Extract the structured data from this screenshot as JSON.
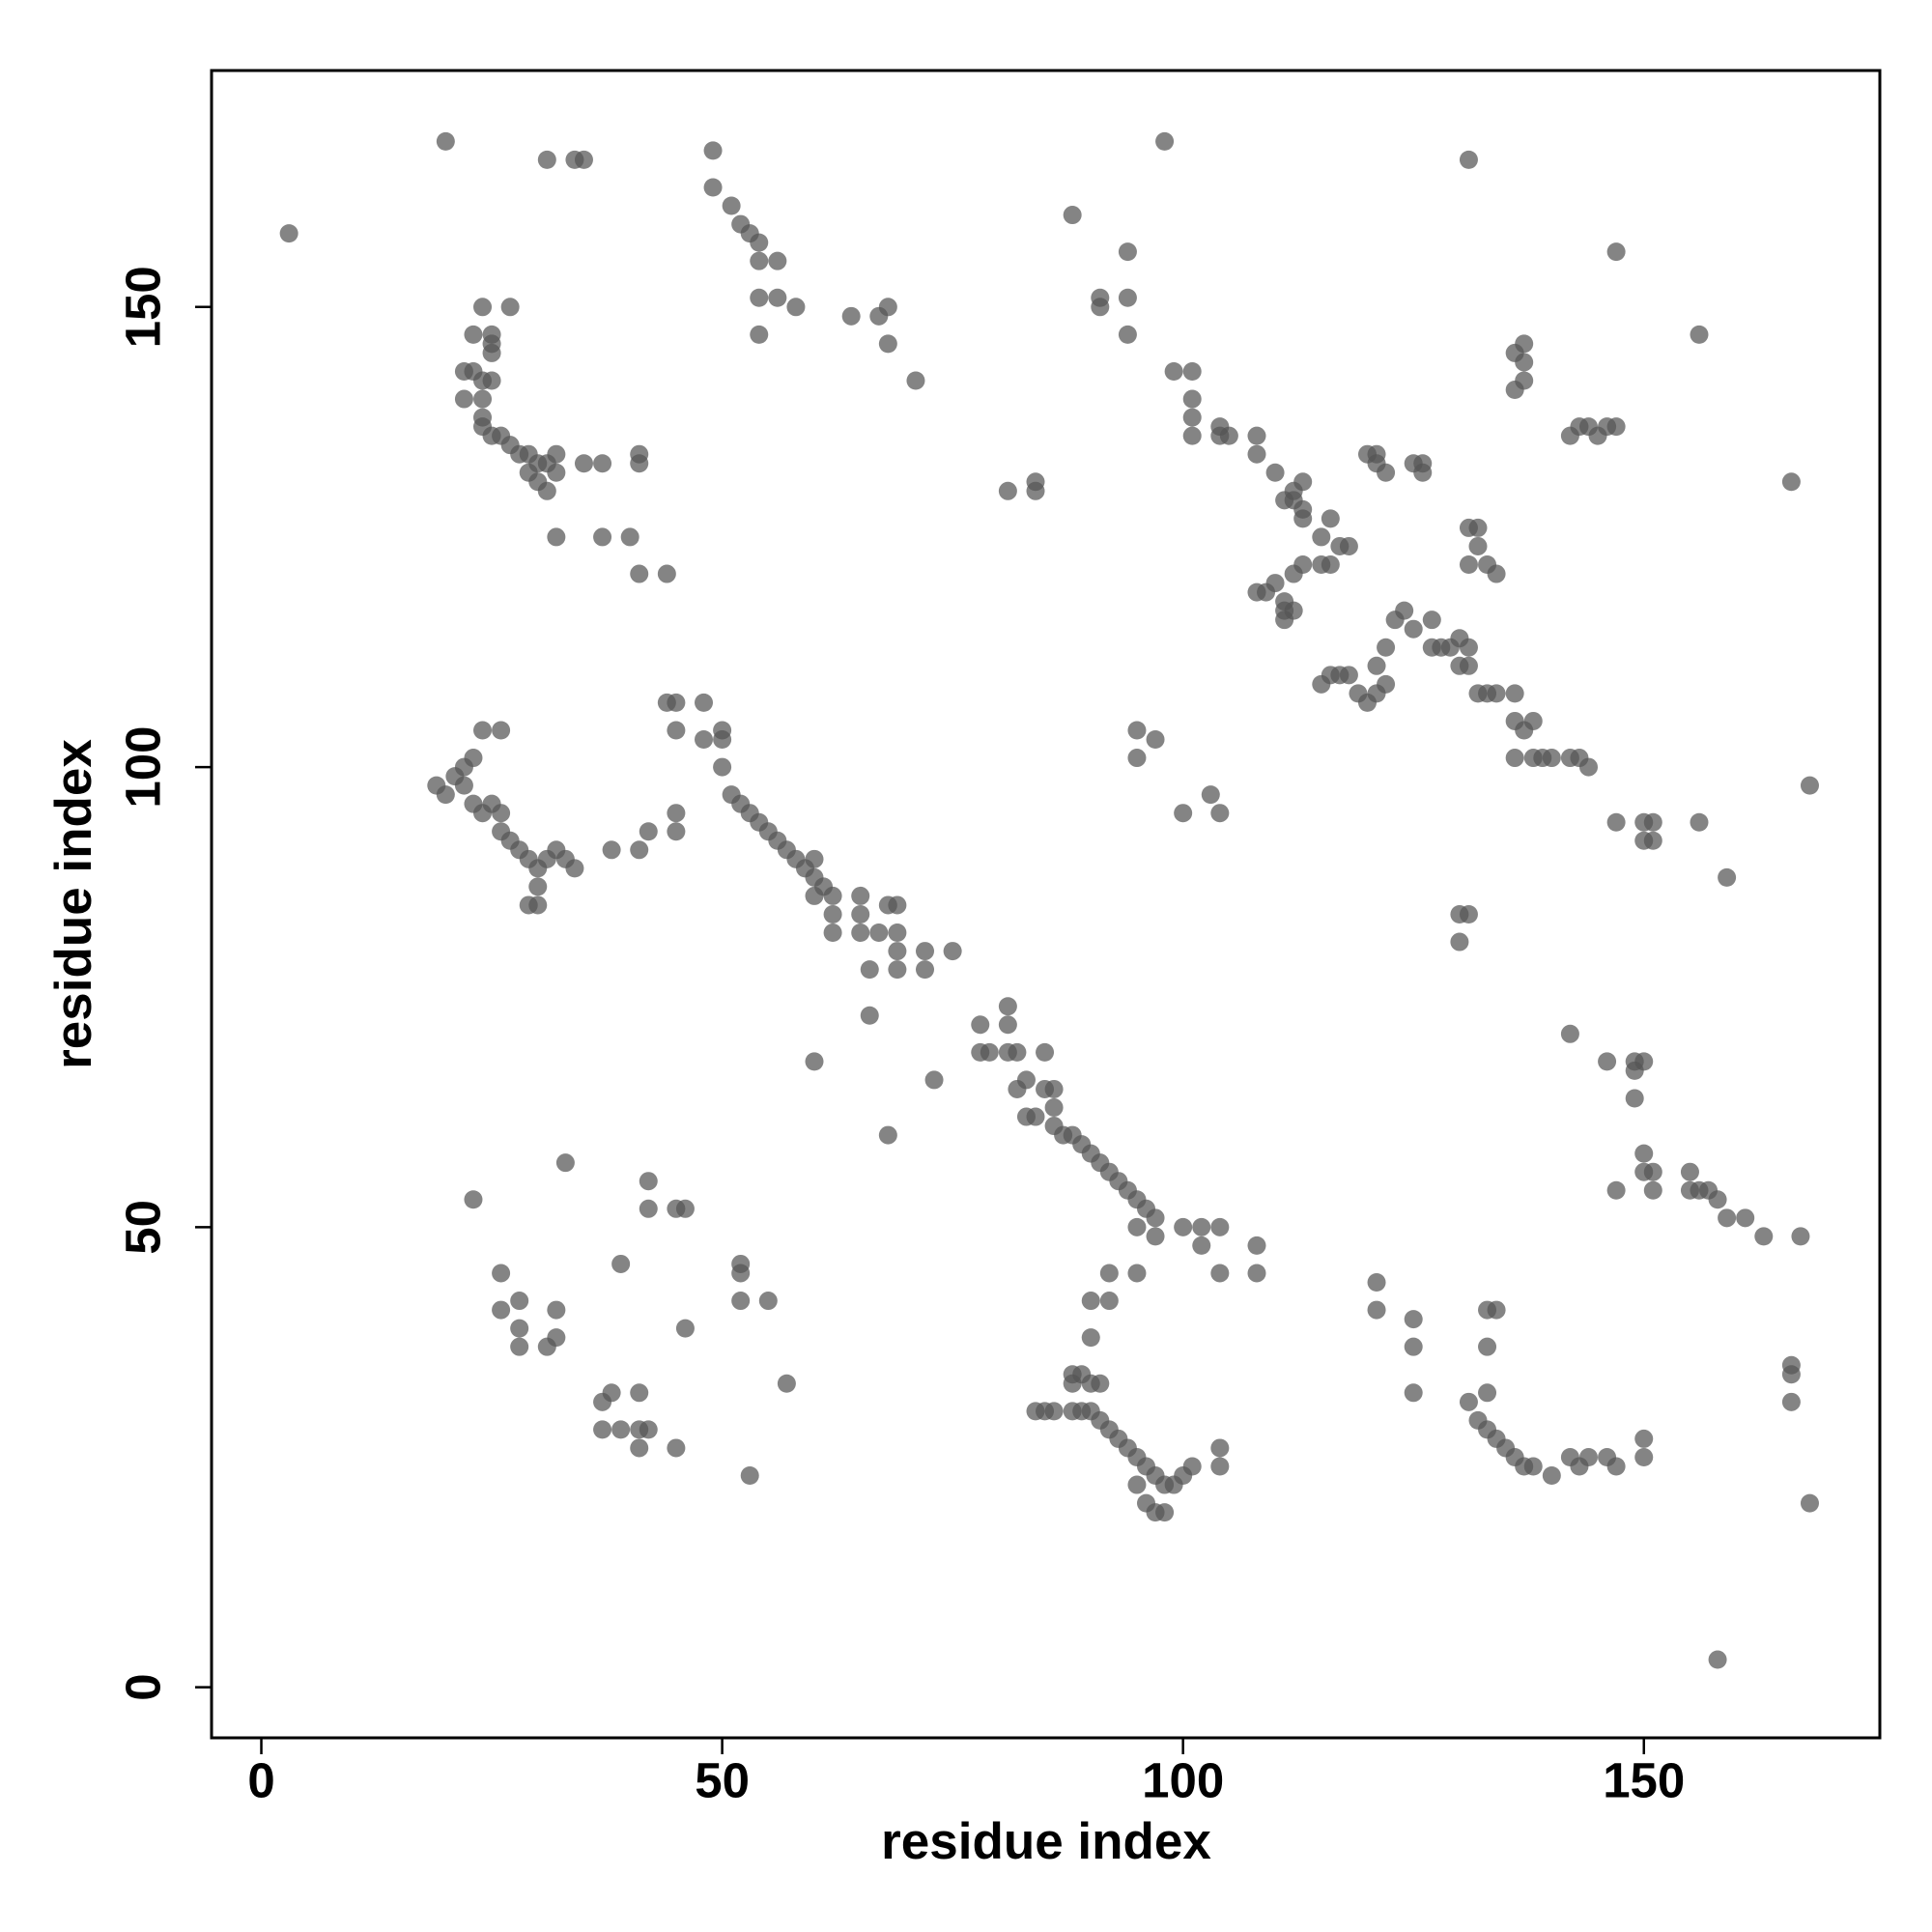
{
  "chart_data": {
    "type": "scatter",
    "x_label": "residue index",
    "y_label": "residue index",
    "color": "#555555",
    "opacity": 0.72,
    "xlim": [
      -5.4,
      175.6
    ],
    "ylim": [
      -5.5,
      175.7
    ],
    "xticks": [
      0,
      50,
      100,
      150
    ],
    "yticks": [
      0,
      50,
      100,
      150
    ],
    "x": [
      24,
      27,
      23,
      25,
      25,
      25,
      22,
      23,
      24,
      25,
      22,
      24,
      24,
      24,
      25,
      26,
      27,
      28,
      29,
      30,
      31,
      32,
      29,
      30,
      31,
      32,
      35,
      37,
      41,
      41,
      32,
      37,
      40,
      41,
      44,
      3,
      20,
      31,
      34,
      35,
      49,
      49,
      51,
      52,
      53,
      54,
      54,
      56,
      54,
      56,
      58,
      54,
      64,
      67,
      68,
      68,
      71,
      133,
      134,
      133,
      133,
      131,
      132,
      133,
      134,
      135,
      136,
      137,
      138,
      140,
      142,
      143,
      144,
      146,
      147,
      150,
      150,
      166,
      166,
      166,
      168,
      158,
      121,
      121,
      125,
      125,
      125,
      19,
      20,
      21,
      22,
      22,
      23,
      23,
      24,
      25,
      26,
      26,
      27,
      28,
      29,
      30,
      30,
      30,
      29,
      31,
      32,
      33,
      34,
      24,
      26,
      38,
      42,
      41,
      45,
      45,
      44,
      45,
      45,
      48,
      48,
      50,
      50,
      50,
      51,
      52,
      53,
      54,
      55,
      56,
      57,
      58,
      59,
      60,
      60,
      61,
      60,
      62,
      62,
      62,
      65,
      65,
      65,
      67,
      68,
      69,
      69,
      69,
      69,
      66,
      72,
      72,
      75,
      66,
      60,
      73,
      68,
      78,
      81,
      81,
      78,
      79,
      81,
      82,
      83,
      82,
      83,
      84,
      85,
      86,
      85,
      86,
      86,
      87,
      88,
      89,
      90,
      91,
      92,
      93,
      94,
      95,
      96,
      97,
      95,
      97,
      100,
      102,
      104,
      108,
      108,
      102,
      104,
      92,
      95,
      90,
      92,
      90,
      84,
      85,
      86,
      88,
      89,
      90,
      91,
      92,
      93,
      94,
      95,
      96,
      97,
      98,
      99,
      100,
      101,
      96,
      97,
      98,
      95,
      104,
      104,
      88,
      89,
      90,
      91,
      88,
      23,
      33,
      26,
      26,
      28,
      28,
      28,
      31,
      32,
      32,
      39,
      37,
      38,
      37,
      39,
      41,
      41,
      42,
      41,
      45,
      42,
      42,
      45,
      46,
      46,
      52,
      52,
      52,
      55,
      57,
      53,
      99,
      101,
      101,
      101,
      101,
      104,
      104,
      105,
      108,
      108,
      110,
      112,
      113,
      112,
      111,
      113,
      113,
      116,
      115,
      116,
      117,
      118,
      113,
      112,
      110,
      109,
      108,
      111,
      111,
      112,
      111,
      115,
      120,
      121,
      122,
      121,
      125,
      126,
      126,
      131,
      132,
      132,
      131,
      133,
      134,
      115,
      116,
      117,
      118,
      119,
      120,
      121,
      122,
      121,
      122,
      123,
      124,
      125,
      127,
      127,
      128,
      129,
      130,
      130,
      131,
      131,
      132,
      133,
      134,
      136,
      136,
      137,
      138,
      136,
      138,
      139,
      140,
      142,
      143,
      144,
      88,
      94,
      91,
      91,
      94,
      94,
      98,
      81,
      84,
      84,
      95,
      95,
      97,
      100,
      103,
      104,
      131,
      147,
      137,
      137,
      136,
      136,
      137,
      142,
      143,
      144,
      146,
      145,
      147,
      156,
      166,
      168,
      147,
      150,
      151,
      150,
      151,
      156,
      159,
      130,
      131,
      130,
      142,
      146,
      149,
      150,
      149,
      149,
      150,
      150,
      151,
      151,
      147,
      155,
      155,
      156,
      157,
      158,
      159,
      161,
      163,
      167
    ],
    "y": [
      150,
      150,
      147,
      147,
      146,
      145,
      143,
      143,
      142,
      142,
      140,
      140,
      138,
      137,
      136,
      136,
      135,
      134,
      134,
      133,
      133,
      134,
      132,
      131,
      130,
      132,
      133,
      133,
      134,
      133,
      125,
      125,
      125,
      121,
      121,
      158,
      168,
      166,
      166,
      166,
      167,
      163,
      161,
      159,
      158,
      157,
      155,
      155,
      151,
      151,
      150,
      147,
      149,
      149,
      150,
      146,
      142,
      41,
      41,
      37,
      32,
      31,
      29,
      28,
      27,
      26,
      25,
      24,
      24,
      23,
      25,
      24,
      25,
      25,
      24,
      25,
      27,
      35,
      34,
      31,
      20,
      3,
      44,
      41,
      40,
      37,
      32,
      98,
      97,
      99,
      100,
      98,
      101,
      96,
      95,
      96,
      95,
      93,
      92,
      91,
      90,
      89,
      87,
      85,
      85,
      90,
      91,
      90,
      89,
      104,
      104,
      91,
      93,
      91,
      95,
      93,
      107,
      107,
      104,
      107,
      103,
      104,
      103,
      100,
      97,
      96,
      95,
      94,
      93,
      92,
      91,
      90,
      89,
      90,
      88,
      87,
      86,
      86,
      84,
      82,
      86,
      84,
      82,
      82,
      85,
      85,
      82,
      80,
      78,
      78,
      80,
      78,
      80,
      73,
      68,
      66,
      60,
      72,
      74,
      72,
      69,
      69,
      69,
      69,
      66,
      65,
      62,
      62,
      65,
      65,
      69,
      63,
      61,
      60,
      60,
      59,
      58,
      57,
      56,
      55,
      54,
      53,
      52,
      51,
      50,
      49,
      50,
      50,
      50,
      48,
      45,
      48,
      45,
      45,
      45,
      42,
      42,
      38,
      30,
      30,
      30,
      30,
      30,
      30,
      29,
      28,
      27,
      26,
      25,
      24,
      23,
      22,
      22,
      23,
      24,
      20,
      19,
      19,
      22,
      24,
      26,
      34,
      34,
      33,
      33,
      33,
      53,
      57,
      45,
      41,
      42,
      39,
      37,
      37,
      38,
      41,
      46,
      31,
      32,
      28,
      28,
      28,
      32,
      28,
      26,
      26,
      55,
      52,
      52,
      52,
      39,
      46,
      45,
      42,
      42,
      33,
      23,
      143,
      143,
      140,
      138,
      136,
      136,
      137,
      136,
      136,
      134,
      132,
      130,
      131,
      129,
      129,
      128,
      127,
      127,
      125,
      122,
      124,
      124,
      122,
      121,
      120,
      119,
      119,
      116,
      117,
      117,
      118,
      122,
      134,
      133,
      132,
      134,
      133,
      133,
      132,
      126,
      126,
      124,
      122,
      122,
      121,
      109,
      110,
      110,
      110,
      108,
      107,
      108,
      109,
      111,
      113,
      116,
      117,
      115,
      116,
      113,
      113,
      113,
      114,
      111,
      113,
      111,
      108,
      108,
      108,
      108,
      105,
      104,
      105,
      101,
      101,
      101,
      101,
      101,
      101,
      100,
      160,
      156,
      151,
      150,
      151,
      147,
      168,
      130,
      131,
      130,
      104,
      101,
      103,
      95,
      97,
      95,
      166,
      156,
      146,
      144,
      145,
      141,
      142,
      136,
      137,
      137,
      137,
      136,
      137,
      147,
      131,
      98,
      94,
      94,
      92,
      92,
      94,
      94,
      88,
      84,
      84,
      81,
      71,
      68,
      68,
      68,
      67,
      64,
      58,
      56,
      56,
      54,
      54,
      56,
      54,
      54,
      54,
      53,
      51,
      51,
      49,
      49
    ]
  }
}
